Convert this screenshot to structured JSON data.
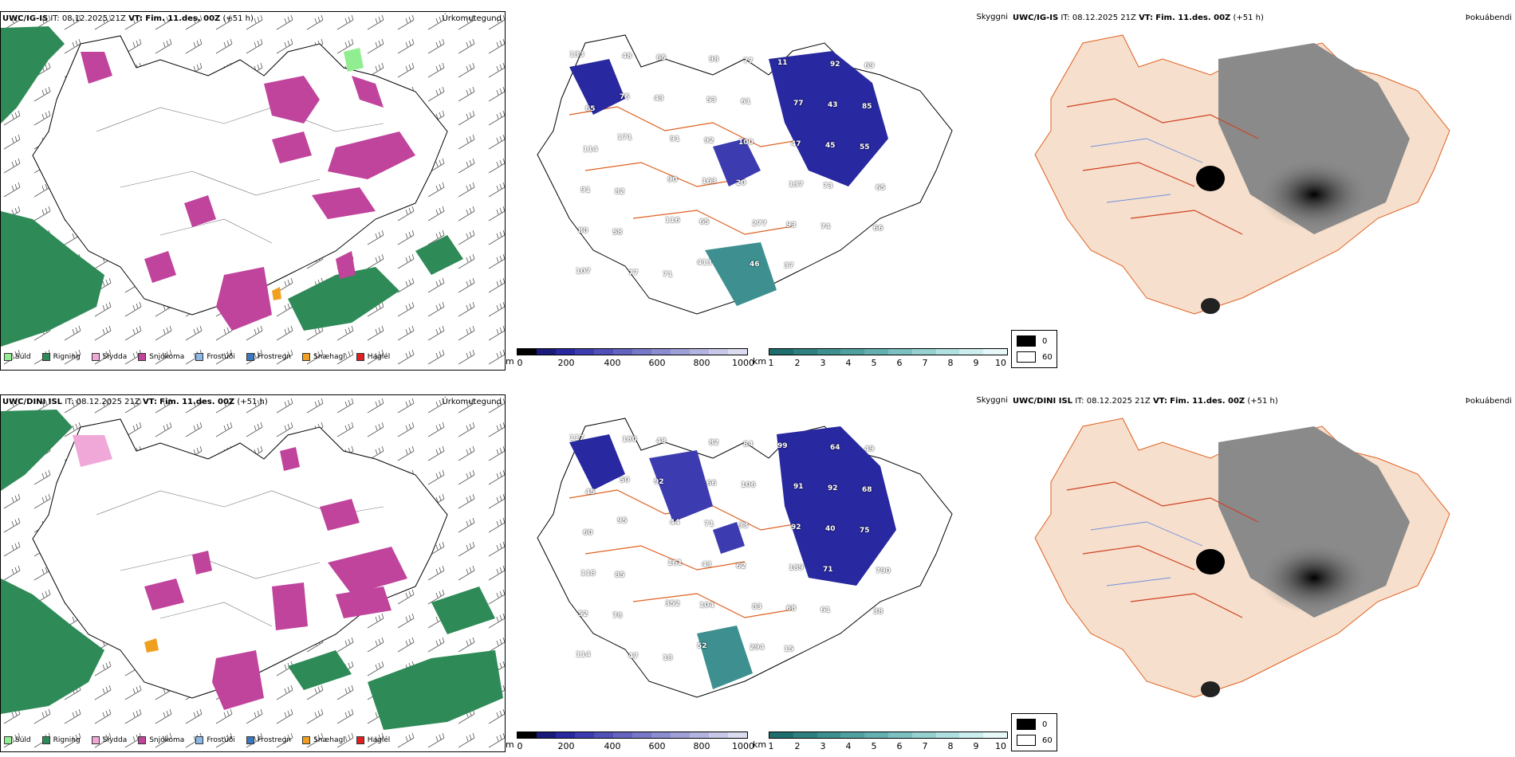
{
  "rows": [
    {
      "model": "UWC/IG-IS",
      "it_label": "IT:",
      "it_value": "08.12.2025 21Z",
      "vt_label": "VT:",
      "vt_value": "Fim. 11.des. 00Z",
      "lead": "(+51 h)",
      "precip_panel_label": "Úrkomutegund",
      "cloud_panel_label": "Skyggni",
      "fog_panel_label": "Þokuábendi",
      "cloud_values": [
        "133",
        "48",
        "65",
        "98",
        "77",
        "11",
        "92",
        "69",
        "65",
        "76",
        "43",
        "53",
        "61",
        "77",
        "43",
        "85",
        "114",
        "171",
        "91",
        "92",
        "100",
        "47",
        "45",
        "55",
        "91",
        "82",
        "90",
        "163",
        "20",
        "137",
        "73",
        "65",
        "80",
        "58",
        "116",
        "65",
        "277",
        "93",
        "74",
        "66",
        "107",
        "77",
        "71",
        "413",
        "46",
        "37"
      ]
    },
    {
      "model": "UWC/DINI ISL",
      "it_label": "IT:",
      "it_value": "08.12.2025 21Z",
      "vt_label": "VT:",
      "vt_value": "Fim. 11.des. 00Z",
      "lead": "(+51 h)",
      "precip_panel_label": "Úrkomutegund",
      "cloud_panel_label": "Skyggni",
      "fog_panel_label": "Þokuábendi",
      "cloud_values": [
        "117",
        "180",
        "48",
        "82",
        "84",
        "99",
        "64",
        "49",
        "45",
        "50",
        "92",
        "66",
        "106",
        "91",
        "92",
        "68",
        "60",
        "95",
        "44",
        "71",
        "33",
        "92",
        "40",
        "75",
        "118",
        "85",
        "161",
        "43",
        "62",
        "189",
        "71",
        "790",
        "52",
        "78",
        "352",
        "104",
        "83",
        "68",
        "61",
        "38",
        "114",
        "47",
        "18",
        "52",
        "294",
        "15"
      ]
    }
  ],
  "precip_legend": [
    {
      "label": "Súld",
      "color": "#90ee90"
    },
    {
      "label": "Rigning",
      "color": "#2e8b57"
    },
    {
      "label": "Slydda",
      "color": "#f0a8d8"
    },
    {
      "label": "Snjókoma",
      "color": "#c0449c"
    },
    {
      "label": "Frostúði",
      "color": "#8cb8e8"
    },
    {
      "label": "Frostregn",
      "color": "#3a78c0"
    },
    {
      "label": "Snæhagl",
      "color": "#f0a020"
    },
    {
      "label": "Haglél",
      "color": "#e02020"
    }
  ],
  "ceiling_colorbar": {
    "unit": "m",
    "ticks": [
      "0",
      "200",
      "400",
      "600",
      "800",
      "1000"
    ],
    "colors": [
      "#000000",
      "#1a1a7a",
      "#2828a0",
      "#3c3cb0",
      "#5050b8",
      "#6464c0",
      "#7878c8",
      "#8c8cd0",
      "#a0a0d8",
      "#b4b4e0",
      "#c8c8e8",
      "#dcdcf0"
    ]
  },
  "visibility_colorbar": {
    "unit": "km",
    "ticks": [
      "1",
      "2",
      "3",
      "4",
      "5",
      "6",
      "7",
      "8",
      "9",
      "10"
    ],
    "colors": [
      "#1e6e6e",
      "#2e8080",
      "#3e9090",
      "#50a0a0",
      "#64b0b0",
      "#7cc0c0",
      "#96d0d0",
      "#b0e0e0",
      "#cceeee",
      "#e8f8f8"
    ]
  },
  "fog_legend": [
    {
      "value": "0",
      "color": "#000000"
    },
    {
      "value": "60",
      "color": "#ffffff"
    }
  ],
  "colors": {
    "land_fill": "#f6dfcc",
    "road": "#e06020",
    "river": "#7090e0",
    "rain": "#2e8b57",
    "snow": "#c0449c"
  }
}
